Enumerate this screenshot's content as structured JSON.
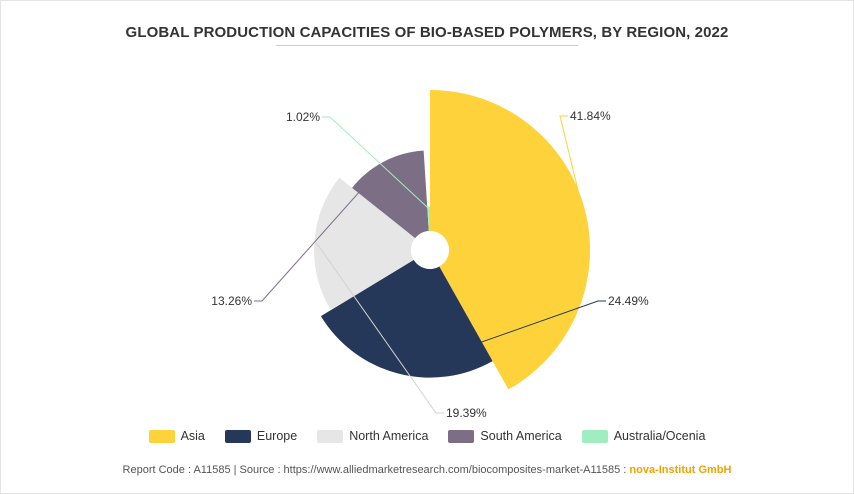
{
  "chart_data": {
    "type": "pie",
    "variant": "nightingale-rose",
    "title": "GLOBAL PRODUCTION CAPACITIES OF BIO-BASED POLYMERS, BY REGION, 2022",
    "categories": [
      "Asia",
      "Europe",
      "North America",
      "South America",
      "Australia/Ocenia"
    ],
    "values": [
      41.84,
      24.49,
      19.39,
      13.26,
      1.02
    ],
    "value_labels": [
      "41.84%",
      "24.49%",
      "19.39%",
      "13.26%",
      "1.02%"
    ],
    "colors": [
      "#fdd23a",
      "#263859",
      "#e6e6e6",
      "#7c6e85",
      "#a0eec0"
    ],
    "legend_position": "bottom"
  },
  "footer": {
    "source_text": "Report Code : A11585  |  Source : https://www.alliedmarketresearch.com/biocomposites-market-A11585 :",
    "publisher": "nova-Institut GmbH"
  }
}
